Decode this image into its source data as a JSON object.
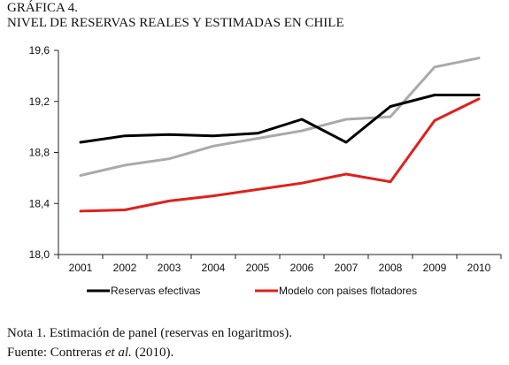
{
  "figure_label": "GRÁFICA 4.",
  "figure_title": "NIVEL DE RESERVAS REALES Y ESTIMADAS EN CHILE",
  "notes": {
    "note1": "Nota 1. Estimación de panel (reservas en logaritmos).",
    "source_prefix": "Fuente: Contreras ",
    "source_italic": "et al.",
    "source_suffix": " (2010)."
  },
  "colors": {
    "black": "#000000",
    "gray": "#aaaaaa",
    "red": "#e0201b",
    "axis": "#222222"
  },
  "chart_data": {
    "type": "line",
    "title": "",
    "xlabel": "",
    "ylabel": "",
    "x": [
      "2001",
      "2002",
      "2003",
      "2004",
      "2005",
      "2006",
      "2007",
      "2008",
      "2009",
      "2010"
    ],
    "ylim": [
      18.0,
      19.6
    ],
    "yticks": [
      "18,0",
      "18,4",
      "18,8",
      "19,2",
      "19,6"
    ],
    "ytick_values": [
      18.0,
      18.4,
      18.8,
      19.2,
      19.6
    ],
    "grid": false,
    "legend_position": "bottom",
    "series": [
      {
        "name": "Reservas efectivas",
        "color": "#000000",
        "in_legend": true,
        "values": [
          18.88,
          18.93,
          18.94,
          18.93,
          18.95,
          19.06,
          18.88,
          19.16,
          19.25,
          19.25
        ]
      },
      {
        "name": "Modelo con paises flotadores",
        "color": "#e0201b",
        "in_legend": true,
        "values": [
          18.34,
          18.35,
          18.42,
          18.46,
          18.51,
          18.56,
          18.63,
          18.57,
          19.05,
          19.22
        ]
      },
      {
        "name": "",
        "color": "#aaaaaa",
        "in_legend": false,
        "values": [
          18.62,
          18.7,
          18.75,
          18.85,
          18.91,
          18.97,
          19.06,
          19.08,
          19.47,
          19.54
        ]
      }
    ]
  }
}
